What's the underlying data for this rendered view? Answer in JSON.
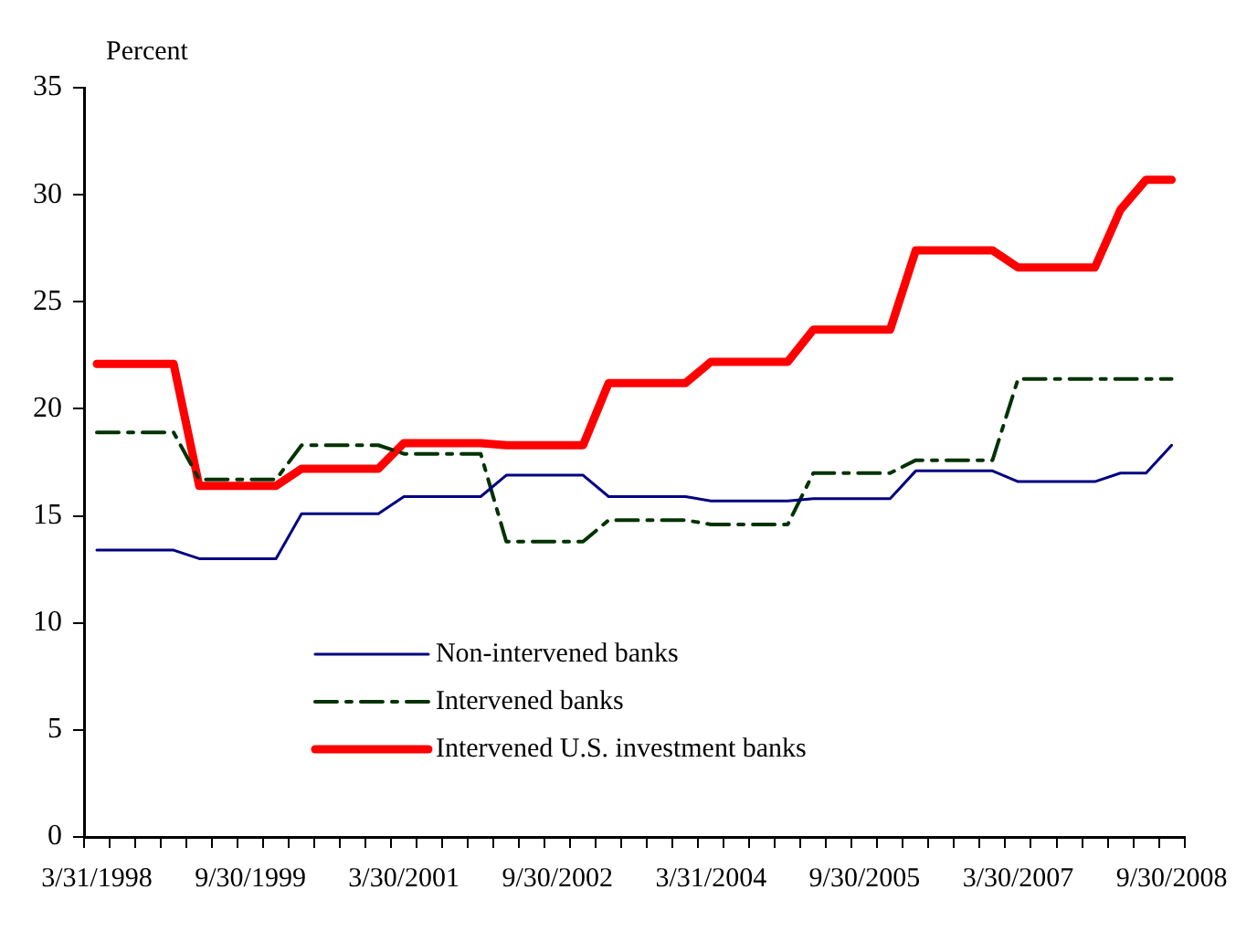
{
  "chart_data": {
    "type": "line",
    "ylabel": "Percent",
    "categories": [
      "3/31/1998",
      null,
      null,
      null,
      null,
      null,
      "9/30/1999",
      null,
      null,
      null,
      null,
      null,
      "3/30/2001",
      null,
      null,
      null,
      null,
      null,
      "9/30/2002",
      null,
      null,
      null,
      null,
      null,
      "3/31/2004",
      null,
      null,
      null,
      null,
      null,
      "9/30/2005",
      null,
      null,
      null,
      null,
      null,
      "3/30/2007",
      null,
      null,
      null,
      null,
      null,
      "9/30/2008"
    ],
    "series": [
      {
        "name": "Non-intervened banks",
        "color": "#000080",
        "line_style": "solid",
        "values": [
          13.4,
          13.4,
          13.4,
          13.4,
          13.0,
          13.0,
          13.0,
          13.0,
          15.1,
          15.1,
          15.1,
          15.1,
          15.9,
          15.9,
          15.9,
          15.9,
          16.9,
          16.9,
          16.9,
          16.9,
          15.9,
          15.9,
          15.9,
          15.9,
          15.7,
          15.7,
          15.7,
          15.7,
          15.8,
          15.8,
          15.8,
          15.8,
          17.1,
          17.1,
          17.1,
          17.1,
          16.6,
          16.6,
          16.6,
          16.6,
          17.0,
          17.0,
          18.3
        ]
      },
      {
        "name": "Intervened banks",
        "color": "#003300",
        "line_style": "dashed",
        "values": [
          18.9,
          18.9,
          18.9,
          18.9,
          16.7,
          16.7,
          16.7,
          16.7,
          18.3,
          18.3,
          18.3,
          18.3,
          17.9,
          17.9,
          17.9,
          17.9,
          13.8,
          13.8,
          13.8,
          13.8,
          14.8,
          14.8,
          14.8,
          14.8,
          14.6,
          14.6,
          14.6,
          14.6,
          17.0,
          17.0,
          17.0,
          17.0,
          17.6,
          17.6,
          17.6,
          17.6,
          21.4,
          21.4,
          21.4,
          21.4,
          21.4,
          21.4,
          21.4
        ]
      },
      {
        "name": "Intervened U.S. investment banks",
        "color": "#ff0000",
        "line_style": "solid",
        "values": [
          22.1,
          22.1,
          22.1,
          22.1,
          16.4,
          16.4,
          16.4,
          16.4,
          17.2,
          17.2,
          17.2,
          17.2,
          18.4,
          18.4,
          18.4,
          18.4,
          18.3,
          18.3,
          18.3,
          18.3,
          21.2,
          21.2,
          21.2,
          21.2,
          22.2,
          22.2,
          22.2,
          22.2,
          23.7,
          23.7,
          23.7,
          23.7,
          27.4,
          27.4,
          27.4,
          27.4,
          26.6,
          26.6,
          26.6,
          26.6,
          29.3,
          30.7,
          30.7
        ]
      }
    ],
    "ylim": [
      0,
      35
    ],
    "yticks": [
      0,
      5,
      10,
      15,
      20,
      25,
      30,
      35
    ],
    "grid": false,
    "legend": "bottom",
    "marker": "none"
  }
}
